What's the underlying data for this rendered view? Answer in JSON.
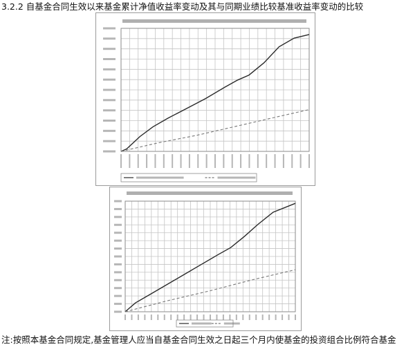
{
  "document": {
    "heading": "3.2.2  自基金合同生效以来基金累计净值收益率变动及其与同期业绩比较基准收益率变动的比较",
    "footnote": "注:按照本基金合同规定,基金管理人应当自基金合同生效之日起三个月内使基金的投资组合比例符合基金"
  },
  "colors": {
    "grid": "#c4c4c4",
    "axis": "#8a8a8a",
    "nav_line": "#2a2a2a",
    "benchmark_line": "#777777",
    "illegible_text": "#6d6d6d"
  },
  "chart_data": [
    {
      "type": "line",
      "title": "",
      "grid": true,
      "ylim": [
        0,
        1
      ],
      "series": [
        {
          "style": "solid",
          "x": [
            0,
            0.03,
            0.1,
            0.17,
            0.25,
            0.35,
            0.45,
            0.55,
            0.62,
            0.68,
            0.76,
            0.84,
            0.92,
            1.0
          ],
          "values": [
            0,
            0.02,
            0.12,
            0.2,
            0.27,
            0.35,
            0.43,
            0.52,
            0.58,
            0.62,
            0.72,
            0.85,
            0.92,
            0.95
          ]
        },
        {
          "style": "dashed",
          "x": [
            0,
            0.2,
            0.4,
            0.6,
            0.8,
            1.0
          ],
          "values": [
            0,
            0.07,
            0.13,
            0.2,
            0.27,
            0.34
          ]
        }
      ]
    },
    {
      "type": "line",
      "title": "",
      "grid": true,
      "ylim": [
        0,
        1
      ],
      "series": [
        {
          "style": "solid",
          "x": [
            0,
            0.06,
            0.15,
            0.25,
            0.35,
            0.45,
            0.55,
            0.62,
            0.7,
            0.78,
            0.87,
            1.0
          ],
          "values": [
            0,
            0.08,
            0.16,
            0.25,
            0.34,
            0.43,
            0.52,
            0.58,
            0.68,
            0.79,
            0.9,
            0.98
          ]
        },
        {
          "style": "dashed",
          "x": [
            0,
            0.25,
            0.5,
            0.75,
            1.0
          ],
          "values": [
            0,
            0.1,
            0.19,
            0.29,
            0.38
          ]
        }
      ]
    }
  ]
}
